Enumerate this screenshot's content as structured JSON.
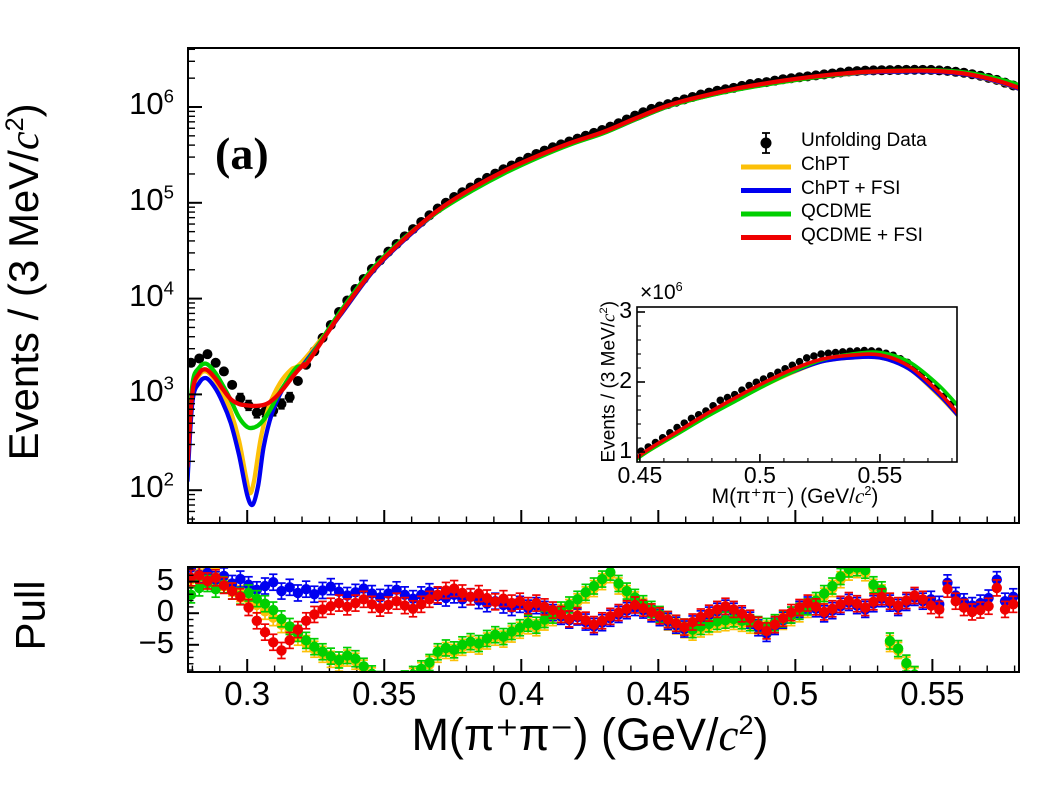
{
  "figure": {
    "panel_label": "(a)",
    "background": "#ffffff"
  },
  "axes": {
    "x_title": {
      "pre": "M(π⁺π⁻) (GeV/",
      "ital": "c",
      "sup": "2",
      "post": ")"
    },
    "x_tick_labels": [
      "0.3",
      "0.35",
      "0.4",
      "0.45",
      "0.5",
      "0.55"
    ],
    "x_tick_values": [
      0.3,
      0.35,
      0.4,
      0.45,
      0.5,
      0.55
    ],
    "main": {
      "y_title": {
        "pre": "Events / (3 MeV/",
        "ital": "c",
        "sup": "2",
        "post": ")"
      },
      "y_scale": "log",
      "y_tick_exponents": [
        2,
        3,
        4,
        5,
        6
      ],
      "x_range": [
        0.2784,
        0.5816
      ],
      "y_range_log10": [
        1.658,
        6.616
      ]
    },
    "pull": {
      "y_title": "Pull",
      "y_tick_labels": [
        "5",
        "0",
        "−5"
      ],
      "y_tick_values": [
        5,
        0,
        -5
      ],
      "y_range": [
        -9.3,
        7.3
      ]
    }
  },
  "legend": [
    {
      "label": "Unfolding Data",
      "type": "marker",
      "color": "#000000"
    },
    {
      "label": "ChPT",
      "type": "line",
      "color": "#fcc008"
    },
    {
      "label": "ChPT + FSI",
      "type": "line",
      "color": "#0000f0"
    },
    {
      "label": "QCDME",
      "type": "line",
      "color": "#00cf00"
    },
    {
      "label": "QCDME + FSI",
      "type": "line",
      "color": "#ef0000"
    }
  ],
  "inset": {
    "scale_label": {
      "pre": "×10",
      "sup": "6"
    },
    "y_tick_labels": [
      "1",
      "2",
      "3"
    ],
    "y_tick_values": [
      1,
      2,
      3
    ],
    "x_tick_labels": [
      "0.45",
      "0.5",
      "0.55"
    ],
    "x_tick_values": [
      0.45,
      0.5,
      0.55
    ],
    "x_range": [
      0.4488,
      0.5821
    ],
    "y_range_millions": [
      0.857,
      3.071
    ]
  },
  "chart_data": {
    "type": "scatter+line",
    "panel_label": "(a)",
    "x_label": "M(π⁺π⁻) (GeV/c²)",
    "y_label_main": "Events / (3 MeV/c²)",
    "y_label_pull": "Pull",
    "y_scale_main": "log",
    "bin_width_gev": 0.003,
    "unfolding_data": {
      "name": "Unfolding Data",
      "m": [
        0.2795,
        0.2855,
        0.2915,
        0.2975,
        0.3035,
        0.3095,
        0.3155,
        0.3215,
        0.3275,
        0.3335,
        0.3395,
        0.3455,
        0.3515,
        0.3575,
        0.3635,
        0.3695,
        0.3755,
        0.3815,
        0.3875,
        0.3935,
        0.3995,
        0.4055,
        0.4115,
        0.4175,
        0.4235,
        0.4295,
        0.4355,
        0.4415,
        0.4475,
        0.4535,
        0.4595,
        0.4655,
        0.4715,
        0.4775,
        0.4835,
        0.4895,
        0.4955,
        0.5015,
        0.5075,
        0.5135,
        0.5195,
        0.5255,
        0.5315,
        0.5375,
        0.5435,
        0.5495,
        0.5555,
        0.5615,
        0.5675,
        0.5735,
        0.5795
      ],
      "log10_events": [
        3.33,
        3.42,
        3.24,
        2.96,
        2.81,
        2.83,
        2.97,
        3.31,
        3.59,
        3.86,
        4.1,
        4.31,
        4.49,
        4.65,
        4.8,
        4.94,
        5.06,
        5.16,
        5.26,
        5.35,
        5.43,
        5.51,
        5.58,
        5.64,
        5.7,
        5.76,
        5.83,
        5.91,
        5.98,
        6.03,
        6.08,
        6.13,
        6.17,
        6.2,
        6.24,
        6.26,
        6.29,
        6.31,
        6.33,
        6.35,
        6.37,
        6.38,
        6.384,
        6.387,
        6.389,
        6.387,
        6.377,
        6.358,
        6.326,
        6.283,
        6.225
      ]
    },
    "models": [
      {
        "name": "ChPT",
        "color": "#fcc008",
        "m": [
          0.2782,
          0.28,
          0.2825,
          0.285,
          0.288,
          0.291,
          0.294,
          0.297,
          0.2995,
          0.301,
          0.3025,
          0.305,
          0.308,
          0.312,
          0.316,
          0.32,
          0.334,
          0.346,
          0.358,
          0.37,
          0.382,
          0.394,
          0.406,
          0.418,
          0.43,
          0.442,
          0.454,
          0.466,
          0.478,
          0.49,
          0.502,
          0.514,
          0.526,
          0.538,
          0.55,
          0.562,
          0.574,
          0.5825
        ],
        "log10": [
          2.2,
          3.0,
          3.2,
          3.24,
          3.16,
          3.02,
          2.82,
          2.52,
          2.15,
          1.97,
          2.1,
          2.55,
          2.88,
          3.12,
          3.26,
          3.34,
          3.83,
          4.29,
          4.63,
          4.92,
          5.14,
          5.325,
          5.48,
          5.615,
          5.73,
          5.875,
          6.01,
          6.103,
          6.18,
          6.24,
          6.29,
          6.33,
          6.36,
          6.37,
          6.37,
          6.34,
          6.26,
          6.18
        ]
      },
      {
        "name": "ChPT + FSI",
        "color": "#0000f0",
        "m": [
          0.2782,
          0.28,
          0.2825,
          0.285,
          0.288,
          0.291,
          0.294,
          0.297,
          0.3,
          0.302,
          0.304,
          0.306,
          0.309,
          0.313,
          0.317,
          0.321,
          0.334,
          0.346,
          0.358,
          0.37,
          0.382,
          0.394,
          0.406,
          0.418,
          0.43,
          0.442,
          0.454,
          0.466,
          0.478,
          0.49,
          0.502,
          0.514,
          0.526,
          0.538,
          0.55,
          0.562,
          0.574,
          0.5825
        ],
        "log10": [
          2.1,
          2.92,
          3.12,
          3.17,
          3.08,
          2.92,
          2.7,
          2.37,
          1.95,
          1.85,
          2.05,
          2.45,
          2.8,
          3.06,
          3.22,
          3.33,
          3.83,
          4.29,
          4.63,
          4.92,
          5.14,
          5.325,
          5.48,
          5.615,
          5.73,
          5.875,
          6.012,
          6.105,
          6.182,
          6.242,
          6.292,
          6.332,
          6.36,
          6.37,
          6.37,
          6.34,
          6.264,
          6.182
        ]
      },
      {
        "name": "QCDME",
        "color": "#00cf00",
        "m": [
          0.2782,
          0.28,
          0.2825,
          0.285,
          0.288,
          0.291,
          0.294,
          0.297,
          0.3,
          0.3025,
          0.305,
          0.308,
          0.311,
          0.3145,
          0.318,
          0.322,
          0.334,
          0.346,
          0.358,
          0.37,
          0.382,
          0.394,
          0.406,
          0.418,
          0.43,
          0.442,
          0.454,
          0.466,
          0.478,
          0.49,
          0.502,
          0.514,
          0.526,
          0.538,
          0.55,
          0.562,
          0.574,
          0.5825
        ],
        "log10": [
          2.3,
          3.1,
          3.28,
          3.32,
          3.24,
          3.1,
          2.94,
          2.76,
          2.66,
          2.655,
          2.7,
          2.82,
          2.98,
          3.14,
          3.28,
          3.35,
          3.865,
          4.32,
          4.65,
          4.915,
          5.125,
          5.31,
          5.47,
          5.61,
          5.728,
          5.875,
          6.01,
          6.102,
          6.178,
          6.238,
          6.29,
          6.333,
          6.365,
          6.38,
          6.384,
          6.36,
          6.294,
          6.22
        ]
      },
      {
        "name": "QCDME + FSI",
        "color": "#ef0000",
        "m": [
          0.2782,
          0.28,
          0.2825,
          0.285,
          0.288,
          0.291,
          0.294,
          0.297,
          0.3,
          0.3035,
          0.307,
          0.31,
          0.3135,
          0.317,
          0.3205,
          0.322,
          0.334,
          0.346,
          0.358,
          0.37,
          0.382,
          0.394,
          0.406,
          0.418,
          0.43,
          0.442,
          0.454,
          0.466,
          0.478,
          0.49,
          0.502,
          0.514,
          0.526,
          0.538,
          0.55,
          0.562,
          0.574,
          0.5825
        ],
        "log10": [
          2.25,
          3.02,
          3.22,
          3.26,
          3.18,
          3.06,
          2.95,
          2.9,
          2.885,
          2.88,
          2.9,
          2.96,
          3.07,
          3.2,
          3.31,
          3.33,
          3.84,
          4.3,
          4.64,
          4.93,
          5.15,
          5.335,
          5.49,
          5.625,
          5.74,
          5.885,
          6.02,
          6.113,
          6.19,
          6.25,
          6.3,
          6.34,
          6.367,
          6.377,
          6.378,
          6.348,
          6.272,
          6.19
        ]
      }
    ],
    "pulls": {
      "m_start": 0.2795,
      "m_step": 0.003,
      "series": [
        {
          "name": "ChPT",
          "color": "#fcc008",
          "values": [
            5.3,
            6.3,
            6.8,
            5.8,
            4.9,
            4.0,
            3.1,
            2.2,
            1.3,
            0.3,
            -0.7,
            -1.8,
            -2.8,
            -3.8,
            -4.8,
            -5.7,
            -6.5,
            -7.3,
            -7.9,
            -7.1,
            -7.6,
            -8.7,
            -9.9,
            -10.8,
            -11.3,
            -11.3,
            -10.7,
            -10.0,
            -9.1,
            -8.1,
            -6.5,
            -5.9,
            -6.2,
            -5.4,
            -4.9,
            -5.2,
            -4.4,
            -3.8,
            -4.1,
            -3.3,
            -2.7,
            -2.0,
            -2.3,
            -1.4,
            -0.7,
            0.1,
            0.9,
            1.8,
            2.9,
            3.9,
            5.0,
            6.1,
            4.3,
            3.1,
            2.1,
            1.1,
            0.2,
            -0.6,
            -1.4,
            -2.0,
            -2.6,
            -3.0,
            -2.5,
            -2.1,
            -1.7,
            -1.5,
            -1.3,
            -1.6,
            -1.9,
            -2.2,
            -2.5,
            -1.9,
            -1.3,
            -0.7,
            -0.1,
            0.6,
            1.6,
            2.7,
            3.9,
            5.3,
            6.5,
            6.9,
            6.4,
            4.1,
            3.2,
            -4.8,
            -5.9,
            -8.2,
            -9.9,
            null,
            null,
            null,
            null,
            null,
            null,
            null,
            null,
            null,
            null,
            null,
            null
          ]
        },
        {
          "name": "ChPT + FSI",
          "color": "#0000f0",
          "values": [
            7.2,
            6.1,
            6.4,
            5.3,
            5.9,
            4.7,
            5.4,
            4.5,
            3.7,
            4.3,
            4.9,
            3.5,
            4.1,
            3.2,
            3.8,
            3.0,
            3.6,
            4.2,
            3.4,
            2.8,
            3.3,
            3.9,
            3.1,
            2.5,
            3.1,
            3.7,
            2.9,
            2.3,
            2.9,
            3.4,
            2.7,
            2.4,
            2.9,
            2.2,
            2.6,
            2.0,
            1.5,
            1.9,
            1.3,
            0.9,
            1.4,
            0.8,
            1.2,
            0.6,
            0.1,
            -0.5,
            -1.1,
            -0.6,
            -1.4,
            -2.1,
            -1.5,
            -0.8,
            -0.2,
            0.4,
            0.9,
            0.5,
            -0.1,
            -0.7,
            -1.3,
            -1.9,
            -2.5,
            -1.7,
            -0.9,
            -0.3,
            0.3,
            0.8,
            0.3,
            -0.4,
            -1.1,
            -2.3,
            -3.2,
            -2.1,
            -1.1,
            -0.3,
            0.6,
            1.3,
            0.7,
            -0.1,
            0.4,
            1.1,
            1.7,
            1.2,
            0.6,
            1.5,
            2.3,
            1.6,
            0.9,
            1.7,
            2.5,
            1.9,
            2.2,
            1.4,
            4.8,
            2.8,
            1.8,
            1.2,
            1.6,
            2.4,
            5.3,
            1.9,
            2.6
          ]
        },
        {
          "name": "QCDME",
          "color": "#00cf00",
          "values": [
            2.9,
            4.0,
            4.7,
            3.8,
            4.5,
            3.5,
            2.7,
            3.2,
            2.3,
            1.5,
            0.5,
            -0.9,
            -2.1,
            -3.2,
            -4.3,
            -5.3,
            -6.1,
            -6.8,
            -7.4,
            -6.7,
            -7.2,
            -8.4,
            -9.6,
            -10.5,
            -11.0,
            -11.0,
            -10.4,
            -9.7,
            -8.8,
            -7.8,
            -6.1,
            -5.5,
            -5.8,
            -5.0,
            -4.5,
            -4.8,
            -4.0,
            -3.4,
            -3.7,
            -2.9,
            -2.3,
            -1.6,
            -1.9,
            -1.0,
            -0.3,
            0.5,
            1.3,
            2.2,
            3.3,
            4.3,
            5.4,
            6.5,
            4.7,
            3.5,
            2.5,
            1.5,
            0.6,
            -0.2,
            -1.0,
            -1.6,
            -2.2,
            -2.6,
            -2.1,
            -1.7,
            -1.3,
            -1.1,
            -0.9,
            -1.2,
            -1.5,
            -1.8,
            -2.1,
            -1.5,
            -0.9,
            -0.3,
            0.3,
            1.0,
            2.0,
            3.1,
            4.3,
            5.8,
            7.0,
            7.2,
            6.8,
            4.5,
            3.7,
            -4.4,
            -5.6,
            -7.9,
            -9.7,
            null,
            null,
            null,
            null,
            null,
            null,
            null,
            null,
            null,
            null,
            null,
            null
          ]
        },
        {
          "name": "QCDME + FSI",
          "color": "#ef0000",
          "values": [
            5.6,
            6.0,
            5.1,
            5.6,
            4.4,
            3.5,
            2.6,
            0.9,
            -1.2,
            -3.0,
            -4.6,
            -5.9,
            -4.3,
            -2.6,
            -1.2,
            -0.2,
            0.6,
            1.1,
            1.6,
            1.0,
            1.6,
            2.2,
            1.4,
            0.8,
            1.3,
            1.9,
            1.2,
            0.7,
            1.4,
            2.2,
            2.9,
            3.6,
            3.9,
            3.2,
            2.6,
            3.1,
            2.4,
            1.8,
            2.3,
            1.6,
            1.9,
            1.2,
            1.6,
            1.0,
            0.5,
            -0.2,
            -0.9,
            -0.4,
            -1.1,
            -1.8,
            -1.2,
            -0.5,
            0.1,
            0.7,
            1.3,
            0.8,
            0.2,
            -0.4,
            -1.0,
            -1.6,
            -2.2,
            -1.4,
            -0.6,
            0.0,
            0.6,
            1.1,
            0.6,
            -0.1,
            -0.8,
            -1.9,
            -2.8,
            -1.8,
            -0.8,
            0.1,
            0.9,
            1.6,
            1.0,
            0.2,
            0.7,
            1.4,
            2.0,
            1.5,
            0.9,
            1.8,
            2.6,
            1.9,
            1.2,
            2.0,
            2.8,
            2.2,
            1.2,
            0.6,
            3.8,
            1.9,
            0.9,
            0.2,
            0.5,
            1.1,
            4.0,
            0.6,
            1.4
          ]
        }
      ]
    }
  }
}
